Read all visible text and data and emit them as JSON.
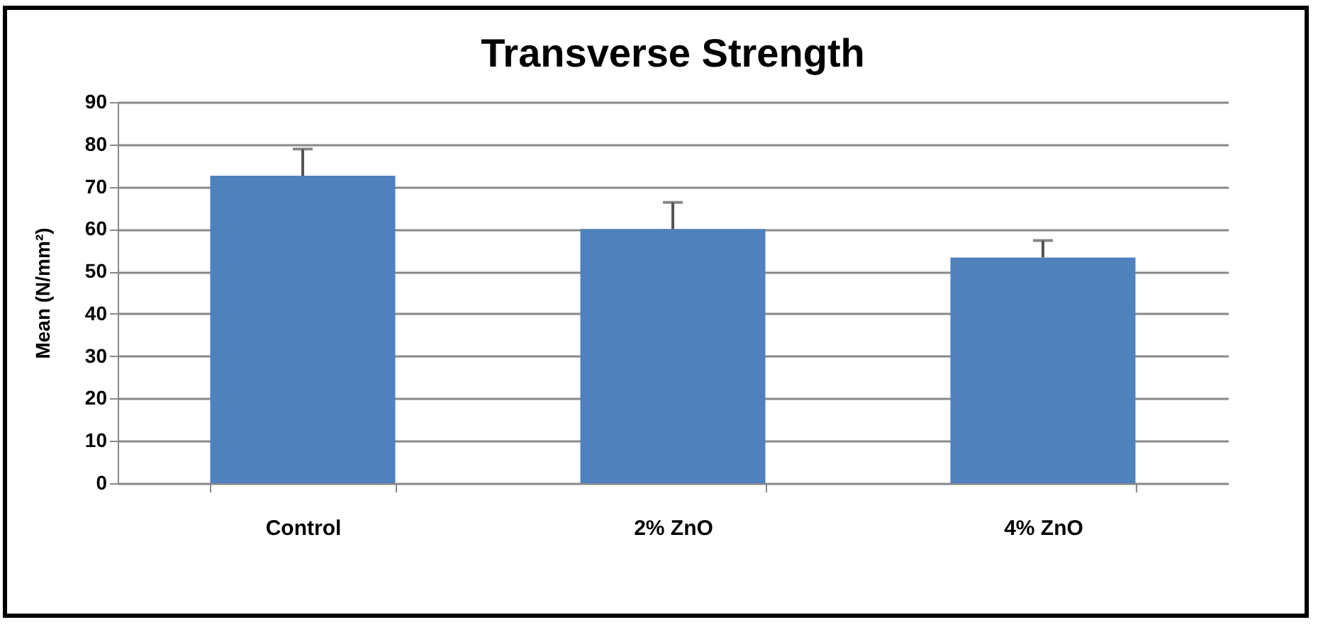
{
  "chart_data": {
    "type": "bar",
    "title": "Transverse Strength",
    "ylabel": "Mean (N/mm²)",
    "categories": [
      "Control",
      "2% ZnO",
      "4% ZnO"
    ],
    "values": [
      72.6,
      60.0,
      53.3
    ],
    "errors": [
      [
        72.6,
        78.9
      ],
      [
        60.0,
        66.3
      ],
      [
        53.3,
        57.3
      ]
    ],
    "color": "#4f81bd",
    "ylim": [
      0,
      90
    ],
    "yticks": [
      0,
      10,
      20,
      30,
      40,
      50,
      60,
      70,
      80,
      90
    ],
    "grid": "y"
  }
}
